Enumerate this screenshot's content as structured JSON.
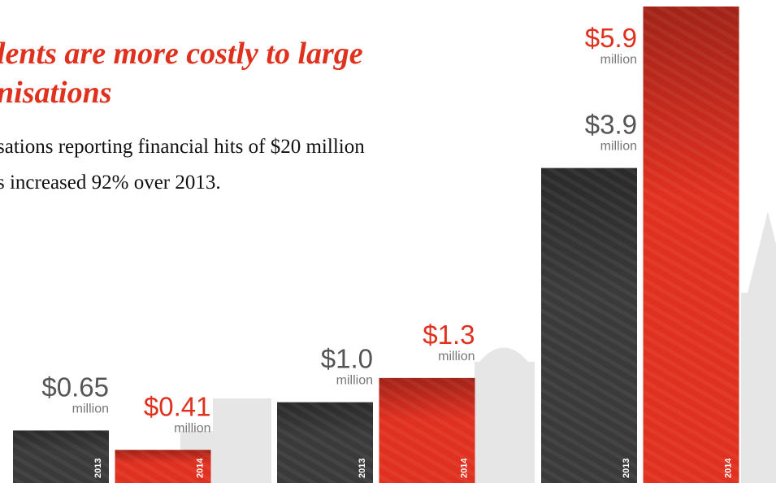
{
  "chart_data": {
    "type": "bar",
    "title": [
      "lents are more costly to large",
      "nisations"
    ],
    "subtitle": [
      "sations reporting financial hits of $20 million",
      "s increased 92% over 2013."
    ],
    "categories": [
      null,
      null,
      null
    ],
    "unit": "million",
    "series": [
      {
        "name": "2013",
        "color": "#3a3a3a",
        "label_color": "#555555",
        "values": [
          0.65,
          1.0,
          3.9
        ],
        "value_labels": [
          "$0.65",
          "$1.0",
          "$3.9"
        ]
      },
      {
        "name": "2014",
        "color": "#e03020",
        "label_color": "#e0301e",
        "values": [
          0.41,
          1.3,
          5.9
        ],
        "value_labels": [
          "$0.41",
          "$1.3",
          "$5.9"
        ]
      }
    ]
  }
}
